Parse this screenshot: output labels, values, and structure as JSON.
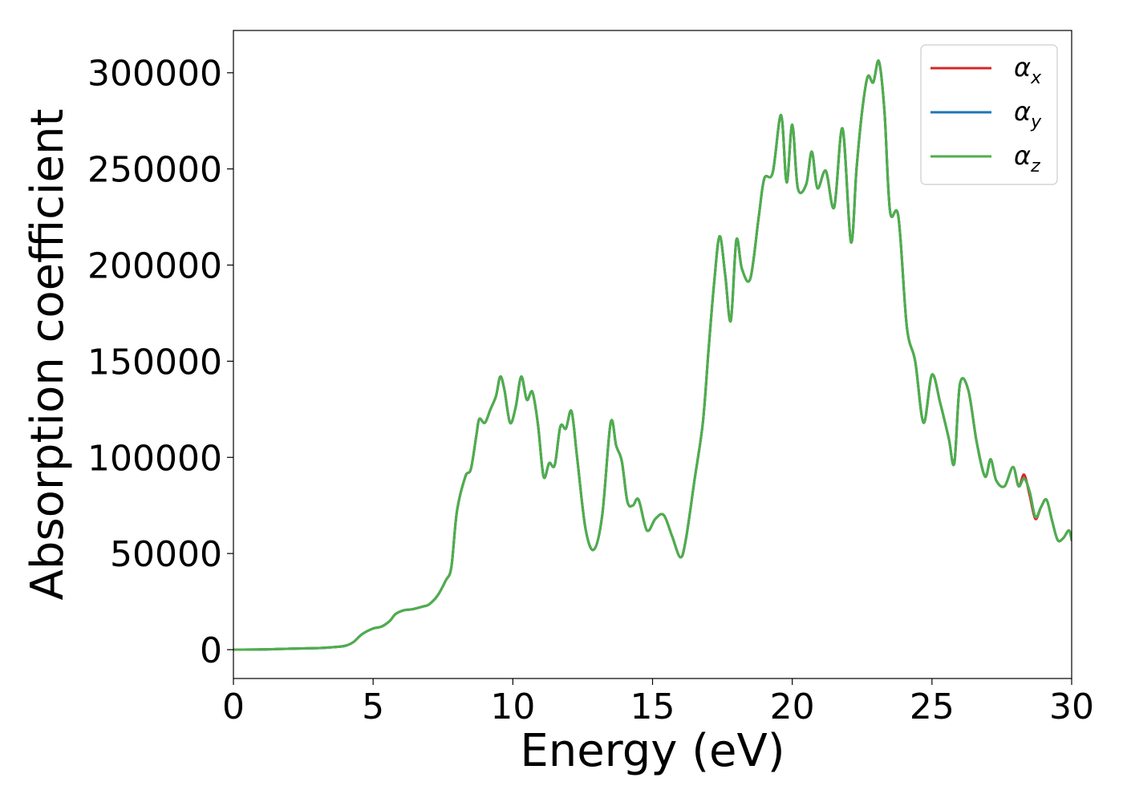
{
  "chart_data": {
    "type": "line",
    "xlabel": "Energy (eV)",
    "ylabel": "Absorption coefficient",
    "xlim": [
      0,
      30
    ],
    "ylim": [
      -15000,
      322000
    ],
    "x_ticks": [
      0,
      5,
      10,
      15,
      20,
      25,
      30
    ],
    "y_ticks": [
      0,
      50000,
      100000,
      150000,
      200000,
      250000,
      300000
    ],
    "grid": false,
    "legend_position": "top-right",
    "series": [
      {
        "name": "α_x",
        "legend_symbol": "α",
        "legend_subscript": "x",
        "color": "#d62728",
        "x": [
          0,
          1,
          2,
          3,
          3.5,
          4,
          4.3,
          4.6,
          5.0,
          5.3,
          5.6,
          5.8,
          6.1,
          6.4,
          6.8,
          7.0,
          7.3,
          7.6,
          7.8,
          8.0,
          8.3,
          8.5,
          8.7,
          8.8,
          9.0,
          9.2,
          9.4,
          9.55,
          9.7,
          9.9,
          10.1,
          10.3,
          10.5,
          10.7,
          10.9,
          11.1,
          11.3,
          11.5,
          11.7,
          11.9,
          12.1,
          12.3,
          12.6,
          12.9,
          13.2,
          13.5,
          13.7,
          13.9,
          14.1,
          14.3,
          14.5,
          14.8,
          15.1,
          15.4,
          15.7,
          16.0,
          16.2,
          16.5,
          16.8,
          17.0,
          17.2,
          17.4,
          17.6,
          17.8,
          18.0,
          18.2,
          18.5,
          18.8,
          19.0,
          19.3,
          19.6,
          19.8,
          20.0,
          20.2,
          20.5,
          20.7,
          20.9,
          21.2,
          21.5,
          21.8,
          22.1,
          22.3,
          22.5,
          22.7,
          22.9,
          23.1,
          23.3,
          23.5,
          23.8,
          24.1,
          24.4,
          24.7,
          25.0,
          25.3,
          25.6,
          25.8,
          26.0,
          26.3,
          26.6,
          26.9,
          27.1,
          27.3,
          27.6,
          27.9,
          28.1,
          28.3,
          28.5,
          28.7,
          28.9,
          29.1,
          29.3,
          29.5,
          29.7,
          29.9,
          30.0
        ],
        "y": [
          0,
          100,
          500,
          800,
          1200,
          2000,
          4000,
          8000,
          11000,
          12000,
          15000,
          18500,
          20500,
          21000,
          22500,
          23500,
          28000,
          36000,
          43000,
          72000,
          90000,
          94000,
          112000,
          120000,
          118000,
          125000,
          132000,
          142000,
          135000,
          118000,
          126000,
          142000,
          130000,
          134000,
          117000,
          90000,
          97000,
          96000,
          116000,
          115000,
          124000,
          100000,
          63000,
          52000,
          70000,
          118000,
          106000,
          98000,
          77000,
          75000,
          78000,
          62000,
          68000,
          70000,
          59000,
          48000,
          58000,
          88000,
          118000,
          155000,
          190000,
          215000,
          195000,
          171000,
          213000,
          198000,
          193000,
          225000,
          245000,
          248000,
          278000,
          243000,
          273000,
          240000,
          242000,
          259000,
          240000,
          249000,
          230000,
          271000,
          212000,
          250000,
          280000,
          298000,
          295000,
          306000,
          280000,
          228000,
          225000,
          168000,
          150000,
          118000,
          143000,
          128000,
          110000,
          97000,
          138000,
          135000,
          108000,
          90000,
          99000,
          88000,
          85000,
          95000,
          85000,
          91000,
          80000,
          68000,
          74000,
          78000,
          67000,
          57000,
          58000,
          62000,
          57000
        ],
        "visible_segment": [
          28.1,
          28.9
        ]
      },
      {
        "name": "α_y",
        "legend_symbol": "α",
        "legend_subscript": "y",
        "color": "#1f77b4",
        "x": [
          0,
          1,
          2,
          3,
          3.5,
          4,
          4.3,
          4.6,
          5.0,
          5.3,
          5.6,
          5.8,
          6.1,
          6.4,
          6.8,
          7.0,
          7.3,
          7.6,
          7.8,
          8.0,
          8.3,
          8.5,
          8.7,
          8.8,
          9.0,
          9.2,
          9.4,
          9.55,
          9.7,
          9.9,
          10.1,
          10.3,
          10.5,
          10.7,
          10.9,
          11.1,
          11.3,
          11.5,
          11.7,
          11.9,
          12.1,
          12.3,
          12.6,
          12.9,
          13.2,
          13.5,
          13.7,
          13.9,
          14.1,
          14.3,
          14.5,
          14.8,
          15.1,
          15.4,
          15.7,
          16.0,
          16.2,
          16.5,
          16.8,
          17.0,
          17.2,
          17.4,
          17.6,
          17.8,
          18.0,
          18.2,
          18.5,
          18.8,
          19.0,
          19.3,
          19.6,
          19.8,
          20.0,
          20.2,
          20.5,
          20.7,
          20.9,
          21.2,
          21.5,
          21.8,
          22.1,
          22.3,
          22.5,
          22.7,
          22.9,
          23.1,
          23.3,
          23.5,
          23.8,
          24.1,
          24.4,
          24.7,
          25.0,
          25.3,
          25.6,
          25.8,
          26.0,
          26.3,
          26.6,
          26.9,
          27.1,
          27.3,
          27.6,
          27.9,
          28.1,
          28.3,
          28.5,
          28.7,
          28.9,
          29.1,
          29.3,
          29.5,
          29.7,
          29.9,
          30.0
        ],
        "y": [
          0,
          100,
          500,
          800,
          1200,
          2000,
          4000,
          8000,
          11000,
          12000,
          15000,
          18500,
          20500,
          21000,
          22500,
          23500,
          28000,
          36000,
          43000,
          72000,
          90000,
          94000,
          112000,
          120000,
          118000,
          125000,
          132000,
          142000,
          135000,
          118000,
          126000,
          142000,
          130000,
          134000,
          117000,
          90000,
          97000,
          96000,
          116000,
          115000,
          124000,
          100000,
          63000,
          52000,
          70000,
          118000,
          106000,
          98000,
          77000,
          75000,
          78000,
          62000,
          68000,
          70000,
          59000,
          48000,
          58000,
          88000,
          118000,
          155000,
          190000,
          215000,
          195000,
          171000,
          213000,
          198000,
          193000,
          225000,
          245000,
          248000,
          278000,
          243000,
          273000,
          240000,
          242000,
          259000,
          240000,
          249000,
          230000,
          271000,
          212000,
          250000,
          280000,
          298000,
          295000,
          306000,
          280000,
          228000,
          225000,
          168000,
          150000,
          118000,
          143000,
          128000,
          110000,
          97000,
          138000,
          135000,
          108000,
          90000,
          99000,
          88000,
          85000,
          95000,
          85000,
          89000,
          82000,
          69000,
          74000,
          78000,
          67000,
          57000,
          58000,
          62000,
          57000
        ]
      },
      {
        "name": "α_z",
        "legend_symbol": "α",
        "legend_subscript": "z",
        "color": "#4daf4a",
        "x": [
          0,
          1,
          2,
          3,
          3.5,
          4,
          4.3,
          4.6,
          5.0,
          5.3,
          5.6,
          5.8,
          6.1,
          6.4,
          6.8,
          7.0,
          7.3,
          7.6,
          7.8,
          8.0,
          8.3,
          8.5,
          8.7,
          8.8,
          9.0,
          9.2,
          9.4,
          9.55,
          9.7,
          9.9,
          10.1,
          10.3,
          10.5,
          10.7,
          10.9,
          11.1,
          11.3,
          11.5,
          11.7,
          11.9,
          12.1,
          12.3,
          12.6,
          12.9,
          13.2,
          13.5,
          13.7,
          13.9,
          14.1,
          14.3,
          14.5,
          14.8,
          15.1,
          15.4,
          15.7,
          16.0,
          16.2,
          16.5,
          16.8,
          17.0,
          17.2,
          17.4,
          17.6,
          17.8,
          18.0,
          18.2,
          18.5,
          18.8,
          19.0,
          19.3,
          19.6,
          19.8,
          20.0,
          20.2,
          20.5,
          20.7,
          20.9,
          21.2,
          21.5,
          21.8,
          22.1,
          22.3,
          22.5,
          22.7,
          22.9,
          23.1,
          23.3,
          23.5,
          23.8,
          24.1,
          24.4,
          24.7,
          25.0,
          25.3,
          25.6,
          25.8,
          26.0,
          26.3,
          26.6,
          26.9,
          27.1,
          27.3,
          27.6,
          27.9,
          28.1,
          28.3,
          28.5,
          28.7,
          28.9,
          29.1,
          29.3,
          29.5,
          29.7,
          29.9,
          30.0
        ],
        "y": [
          0,
          100,
          500,
          800,
          1200,
          2000,
          4000,
          8000,
          11000,
          12000,
          15000,
          18500,
          20500,
          21000,
          22500,
          23500,
          28000,
          36000,
          43000,
          72000,
          90000,
          94000,
          112000,
          120000,
          118000,
          125000,
          132000,
          142000,
          135000,
          118000,
          126000,
          142000,
          130000,
          134000,
          117000,
          90000,
          97000,
          96000,
          116000,
          115000,
          124000,
          100000,
          63000,
          52000,
          70000,
          118000,
          106000,
          98000,
          77000,
          75000,
          78000,
          62000,
          68000,
          70000,
          59000,
          48000,
          58000,
          88000,
          118000,
          155000,
          190000,
          215000,
          195000,
          171000,
          213000,
          198000,
          193000,
          225000,
          245000,
          248000,
          278000,
          243000,
          273000,
          240000,
          242000,
          259000,
          240000,
          249000,
          230000,
          271000,
          212000,
          250000,
          280000,
          298000,
          295000,
          306000,
          280000,
          228000,
          225000,
          168000,
          150000,
          118000,
          143000,
          128000,
          110000,
          97000,
          138000,
          135000,
          108000,
          90000,
          99000,
          88000,
          85000,
          95000,
          85000,
          89000,
          82000,
          69000,
          74000,
          78000,
          67000,
          57000,
          58000,
          62000,
          57000
        ]
      }
    ]
  }
}
